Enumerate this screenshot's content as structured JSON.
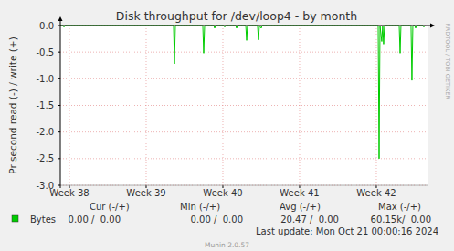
{
  "chart_data": {
    "type": "line",
    "title": "Disk throughput for /dev/loop4 - by month",
    "y_label": "Pr second read (-) / write (+)",
    "x": [
      37.881,
      37.917,
      37.929,
      37.94,
      39.357,
      39.369,
      39.381,
      39.738,
      39.75,
      39.762,
      39.881,
      39.893,
      39.905,
      40.012,
      40.024,
      40.036,
      40.167,
      40.179,
      40.19,
      40.298,
      40.31,
      40.321,
      40.452,
      40.464,
      40.476,
      40.5,
      40.512,
      42.024,
      42.036,
      42.048,
      42.071,
      42.083,
      42.095,
      42.107,
      42.298,
      42.31,
      42.321,
      42.452,
      42.464,
      42.476,
      42.5,
      42.512,
      42.524,
      42.607,
      42.619,
      42.631
    ],
    "series": [
      {
        "name": "Bytes",
        "color": "#00cc00",
        "values": [
          0,
          0,
          -0.03,
          0,
          0,
          -0.72,
          0,
          0,
          -0.52,
          0,
          0,
          -0.05,
          0,
          0,
          -0.03,
          0,
          0,
          -0.05,
          0,
          0,
          -0.28,
          0,
          0,
          -0.27,
          0,
          -0.05,
          0,
          0,
          -2.5,
          0,
          -0.3,
          0,
          -0.35,
          0,
          0,
          -0.52,
          0,
          0,
          -1.03,
          0,
          0,
          -0.05,
          0,
          0,
          -0.03,
          0
        ],
        "stats": [
          "0.00 /  0.00",
          "0.00 /  0.00",
          "20.47 /  0.00",
          "60.15k/  0.00"
        ]
      }
    ],
    "stats_headers": [
      "Cur (-/+)",
      "Min (-/+)",
      "Avg (-/+)",
      "Max (-/+)"
    ],
    "xlim": [
      37.881,
      42.667
    ],
    "xticks": [
      {
        "value": 38,
        "label": "Week 38"
      },
      {
        "value": 39,
        "label": "Week 39"
      },
      {
        "value": 40,
        "label": "Week 40"
      },
      {
        "value": 41,
        "label": "Week 41"
      },
      {
        "value": 42,
        "label": "Week 42"
      }
    ],
    "ylim": [
      -3.0,
      0.0
    ],
    "yticks": [
      {
        "value": 0,
        "label": "0.0"
      },
      {
        "value": -0.5,
        "label": "-0.5"
      },
      {
        "value": -1.0,
        "label": "-1.0"
      },
      {
        "value": -1.5,
        "label": "-1.5"
      },
      {
        "value": -2.0,
        "label": "-2.0"
      },
      {
        "value": -2.5,
        "label": "-2.5"
      },
      {
        "value": -3.0,
        "label": "-3.0"
      }
    ],
    "grid": true,
    "legend": "bottom",
    "footer": "Last update: Mon Oct 21 00:00:16 2024",
    "credit": "Munin 2.0.57",
    "watermark": "RRDTOOL / TOBI OETIKER"
  }
}
